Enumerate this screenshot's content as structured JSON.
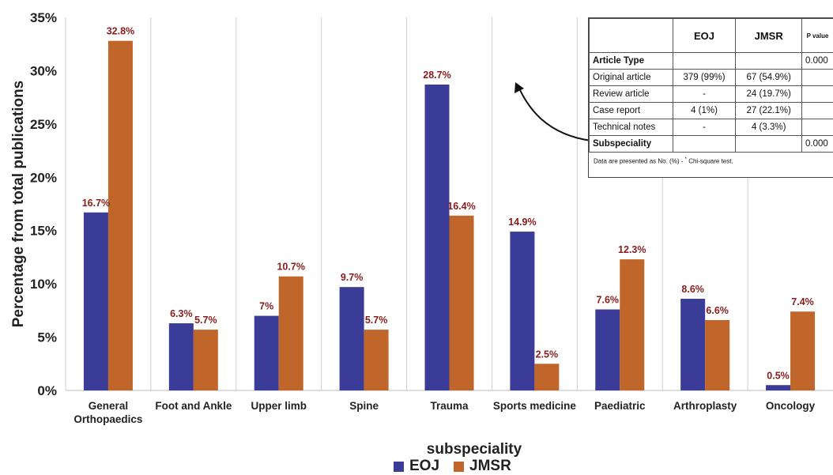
{
  "chart_data": {
    "type": "bar",
    "categories": [
      "General Orthopaedics",
      "Foot and Ankle",
      "Upper limb",
      "Spine",
      "Trauma",
      "Sports medicine",
      "Paediatric",
      "Arthroplasty",
      "Oncology"
    ],
    "category_lines": [
      [
        "General",
        "Orthopaedics"
      ],
      [
        "Foot and Ankle"
      ],
      [
        "Upper limb"
      ],
      [
        "Spine"
      ],
      [
        "Trauma"
      ],
      [
        "Sports medicine"
      ],
      [
        "Paediatric"
      ],
      [
        "Arthroplasty"
      ],
      [
        "Oncology"
      ]
    ],
    "series": [
      {
        "name": "EOJ",
        "color": "#3b3c97",
        "values": [
          16.7,
          6.3,
          7,
          9.7,
          28.7,
          14.9,
          7.6,
          8.6,
          0.5
        ],
        "labels": [
          "16.7%",
          "6.3%",
          "7%",
          "9.7%",
          "28.7%",
          "14.9%",
          "7.6%",
          "8.6%",
          "0.5%"
        ]
      },
      {
        "name": "JMSR",
        "color": "#c0662a",
        "values": [
          32.8,
          5.7,
          10.7,
          5.7,
          16.4,
          2.5,
          12.3,
          6.6,
          7.4
        ],
        "labels": [
          "32.8%",
          "5.7%",
          "10.7%",
          "5.7%",
          "16.4%",
          "2.5%",
          "12.3%",
          "6.6%",
          "7.4%"
        ]
      }
    ],
    "ylim": [
      0,
      35
    ],
    "yticks": [
      0,
      5,
      10,
      15,
      20,
      25,
      30,
      35
    ],
    "ytick_labels": [
      "0%",
      "5%",
      "10%",
      "15%",
      "20%",
      "25%",
      "30%",
      "35%"
    ],
    "xlabel": "subspeciality",
    "ylabel": "Percentage from total publications",
    "label_color": "#8b1a1a",
    "grid": "vertical category separators",
    "legend_position": "bottom-center"
  },
  "inset_table": {
    "headers": [
      "",
      "EOJ",
      "JMSR",
      "P value"
    ],
    "rows": [
      {
        "label": "Article Type",
        "eoj": "",
        "jmsr": "",
        "p": "0.000",
        "bold": true
      },
      {
        "label": "Original article",
        "eoj": "379 (99%)",
        "jmsr": "67 (54.9%)",
        "p": "",
        "bold": false
      },
      {
        "label": "Review article",
        "eoj": "-",
        "jmsr": "24 (19.7%)",
        "p": "",
        "bold": false
      },
      {
        "label": "Case report",
        "eoj": "4 (1%)",
        "jmsr": "27 (22.1%)",
        "p": "",
        "bold": false
      },
      {
        "label": "Technical notes",
        "eoj": "-",
        "jmsr": "4 (3.3%)",
        "p": "",
        "bold": false
      },
      {
        "label": "Subspeciality",
        "eoj": "",
        "jmsr": "",
        "p": "0.000",
        "bold": true
      }
    ],
    "note": "Data are presented as No. (%) -",
    "note_mark": "*",
    "note_tail": "Chi-square test."
  }
}
